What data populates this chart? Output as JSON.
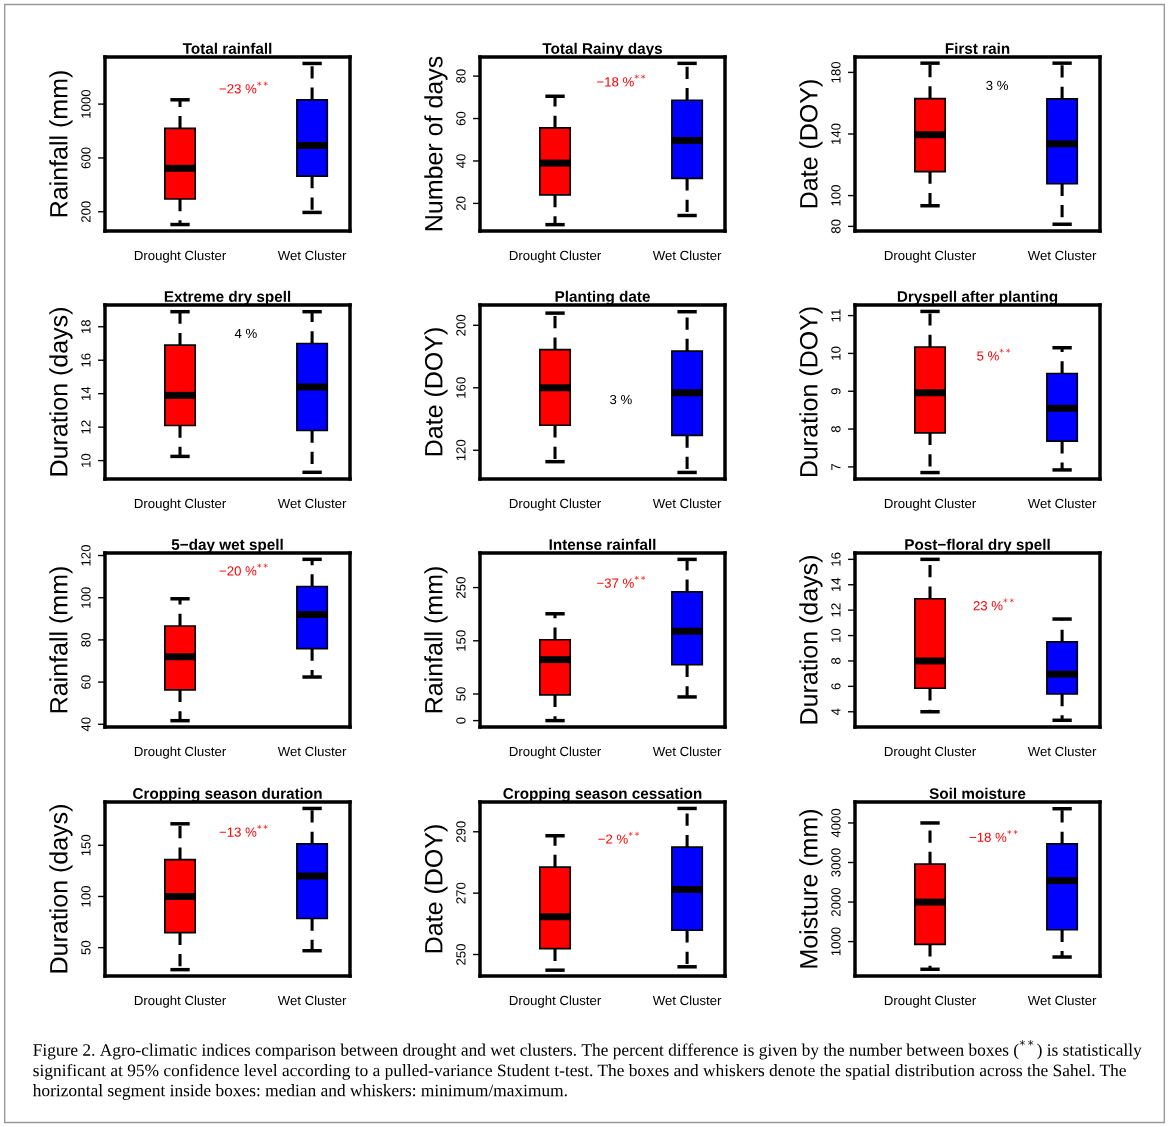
{
  "chart_data": [
    {
      "type": "box",
      "title": "Total rainfall",
      "ylabel": "Rainfall (mm)",
      "categories": [
        "Drought Cluster",
        "Wet Cluster"
      ],
      "colors": [
        "#ff0000",
        "#0000ff"
      ],
      "ylim": [
        57,
        1350
      ],
      "yticks": [
        200,
        600,
        1000
      ],
      "annotations": [
        "−23 %$^{**}$"
      ],
      "boxes": [
        {
          "low": 105,
          "q1": 295,
          "median": 523,
          "q3": 820,
          "high": 1032
        },
        {
          "low": 195,
          "q1": 465,
          "median": 693,
          "q3": 1032,
          "high": 1302
        }
      ]
    },
    {
      "type": "box",
      "title": "Total Rainy days",
      "ylabel": "Number of days",
      "categories": [
        "Drought Cluster",
        "Wet Cluster"
      ],
      "colors": [
        "#ff0000",
        "#0000ff"
      ],
      "ylim": [
        7,
        89
      ],
      "yticks": [
        20,
        40,
        60,
        80
      ],
      "annotations": [
        "−18 %$^{**}$"
      ],
      "boxes": [
        {
          "low": 10,
          "q1": 24,
          "median": 39,
          "q3": 55.6,
          "high": 70.5
        },
        {
          "low": 14.3,
          "q1": 31.8,
          "median": 49.7,
          "q3": 68.6,
          "high": 86
        }
      ]
    },
    {
      "type": "box",
      "title": "First rain",
      "ylabel": "Date (DOY)",
      "categories": [
        "Drought Cluster",
        "Wet Cluster"
      ],
      "colors": [
        "#ff0000",
        "#0000ff"
      ],
      "ylim": [
        77,
        190
      ],
      "yticks": [
        80,
        100,
        140,
        180
      ],
      "annotations": [
        "3 %"
      ],
      "boxes": [
        {
          "low": 93.4,
          "q1": 115.6,
          "median": 139.5,
          "q3": 163,
          "high": 186
        },
        {
          "low": 81.4,
          "q1": 107.7,
          "median": 133.6,
          "q3": 162.8,
          "high": 186
        }
      ]
    },
    {
      "type": "box",
      "title": "Extreme dry spell",
      "ylabel": "Duration (days)",
      "categories": [
        "Drought Cluster",
        "Wet Cluster"
      ],
      "colors": [
        "#ff0000",
        "#0000ff"
      ],
      "ylim": [
        8.9,
        19.3
      ],
      "yticks": [
        10,
        12,
        14,
        16,
        18
      ],
      "annotations": [
        "4 %"
      ],
      "boxes": [
        {
          "low": 10.25,
          "q1": 12.1,
          "median": 13.9,
          "q3": 16.9,
          "high": 18.9
        },
        {
          "low": 9.3,
          "q1": 11.8,
          "median": 14.4,
          "q3": 17.0,
          "high": 18.9
        }
      ]
    },
    {
      "type": "box",
      "title": "Planting date",
      "ylabel": "Date (DOY)",
      "categories": [
        "Drought Cluster",
        "Wet Cluster"
      ],
      "colors": [
        "#ff0000",
        "#0000ff"
      ],
      "ylim": [
        101.6,
        213
      ],
      "yticks": [
        120,
        160,
        200
      ],
      "annotations": [
        "3 %"
      ],
      "boxes": [
        {
          "low": 112.7,
          "q1": 136,
          "median": 160,
          "q3": 184.4,
          "high": 207.8
        },
        {
          "low": 105.8,
          "q1": 129.5,
          "median": 156.8,
          "q3": 183.5,
          "high": 208.7
        }
      ]
    },
    {
      "type": "box",
      "title": "Dryspell after planting",
      "ylabel": "Duration (DOY)",
      "categories": [
        "Drought Cluster",
        "Wet Cluster"
      ],
      "colors": [
        "#ff0000",
        "#0000ff"
      ],
      "ylim": [
        6.68,
        11.28
      ],
      "yticks": [
        7,
        8,
        9,
        10,
        11
      ],
      "annotations": [
        "5 %$^{**}$"
      ],
      "boxes": [
        {
          "low": 6.85,
          "q1": 7.9,
          "median": 8.96,
          "q3": 10.17,
          "high": 11.11
        },
        {
          "low": 6.92,
          "q1": 7.68,
          "median": 8.55,
          "q3": 9.47,
          "high": 10.15
        }
      ]
    },
    {
      "type": "box",
      "title": "5−day wet spell",
      "ylabel": "Rainfall (mm)",
      "categories": [
        "Drought Cluster",
        "Wet Cluster"
      ],
      "colors": [
        "#ff0000",
        "#0000ff"
      ],
      "ylim": [
        38.7,
        121.2
      ],
      "yticks": [
        40,
        60,
        80,
        100,
        120
      ],
      "annotations": [
        "−20 %$^{**}$"
      ],
      "boxes": [
        {
          "low": 41.7,
          "q1": 56.3,
          "median": 72,
          "q3": 86.6,
          "high": 99.5
        },
        {
          "low": 62.4,
          "q1": 75.9,
          "median": 92,
          "q3": 105.3,
          "high": 118.2
        }
      ]
    },
    {
      "type": "box",
      "title": "Intense rainfall",
      "ylabel": "Rainfall (mm)",
      "categories": [
        "Drought Cluster",
        "Wet Cluster"
      ],
      "colors": [
        "#ff0000",
        "#0000ff"
      ],
      "ylim": [
        -12,
        315
      ],
      "yticks": [
        0,
        50,
        150,
        250
      ],
      "annotations": [
        "−37 %$^{**}$"
      ],
      "boxes": [
        {
          "low": 0,
          "q1": 48.5,
          "median": 114.6,
          "q3": 152,
          "high": 200.8
        },
        {
          "low": 44.5,
          "q1": 105,
          "median": 168,
          "q3": 242,
          "high": 303
        }
      ]
    },
    {
      "type": "box",
      "title": "Post−floral dry spell",
      "ylabel": "Duration (days)",
      "categories": [
        "Drought Cluster",
        "Wet Cluster"
      ],
      "colors": [
        "#ff0000",
        "#0000ff"
      ],
      "ylim": [
        2.8,
        16.5
      ],
      "yticks": [
        4,
        6,
        8,
        10,
        12,
        14,
        16
      ],
      "annotations": [
        "23 %$^{**}$"
      ],
      "boxes": [
        {
          "low": 4,
          "q1": 5.85,
          "median": 8,
          "q3": 12.9,
          "high": 16
        },
        {
          "low": 3.33,
          "q1": 5.4,
          "median": 6.96,
          "q3": 9.5,
          "high": 11.3
        }
      ]
    },
    {
      "type": "box",
      "title": "Cropping season duration",
      "ylabel": "Duration (days)",
      "categories": [
        "Drought Cluster",
        "Wet Cluster"
      ],
      "colors": [
        "#ff0000",
        "#0000ff"
      ],
      "ylim": [
        22.3,
        192.3
      ],
      "yticks": [
        50,
        100,
        150
      ],
      "annotations": [
        "−13 %$^{**}$"
      ],
      "boxes": [
        {
          "low": 28.5,
          "q1": 64.6,
          "median": 100,
          "q3": 136,
          "high": 171
        },
        {
          "low": 47,
          "q1": 78.5,
          "median": 120,
          "q3": 151.4,
          "high": 186
        }
      ]
    },
    {
      "type": "box",
      "title": "Cropping season cessation",
      "ylabel": "Date (DOY)",
      "categories": [
        "Drought Cluster",
        "Wet Cluster"
      ],
      "colors": [
        "#ff0000",
        "#0000ff"
      ],
      "ylim": [
        243,
        299.7
      ],
      "yticks": [
        250,
        270,
        290
      ],
      "annotations": [
        "−2 %$^{**}$"
      ],
      "boxes": [
        {
          "low": 244.9,
          "q1": 251.9,
          "median": 262.3,
          "q3": 278.5,
          "high": 288.7
        },
        {
          "low": 246,
          "q1": 257.9,
          "median": 271.2,
          "q3": 285,
          "high": 297.6
        }
      ]
    },
    {
      "type": "box",
      "title": "Soil moisture",
      "ylabel": "Moisture (mm)",
      "categories": [
        "Drought Cluster",
        "Wet Cluster"
      ],
      "colors": [
        "#ff0000",
        "#0000ff"
      ],
      "ylim": [
        130,
        4530
      ],
      "yticks": [
        1000,
        2000,
        3000,
        4000
      ],
      "annotations": [
        "−18 %$^{**}$",
        "Figure 2. Agro-climatic indices comparison between drought and wet clusters. The percent difference is given by the number between boxes ($^{**}$) is statistically significant at 95% confidence level according to a pulled-variance Student t-test. The boxes and whiskers denote the spatial distribution across the Sahel. The horizontal segment inside boxes: median and whiskers: minimum/maximum."
      ],
      "boxes": [
        {
          "low": 300,
          "q1": 930,
          "median": 2000,
          "q3": 2960,
          "high": 4000
        },
        {
          "low": 610,
          "q1": 1300,
          "median": 2540,
          "q3": 3470,
          "high": 4360
        }
      ]
    }
  ]
}
